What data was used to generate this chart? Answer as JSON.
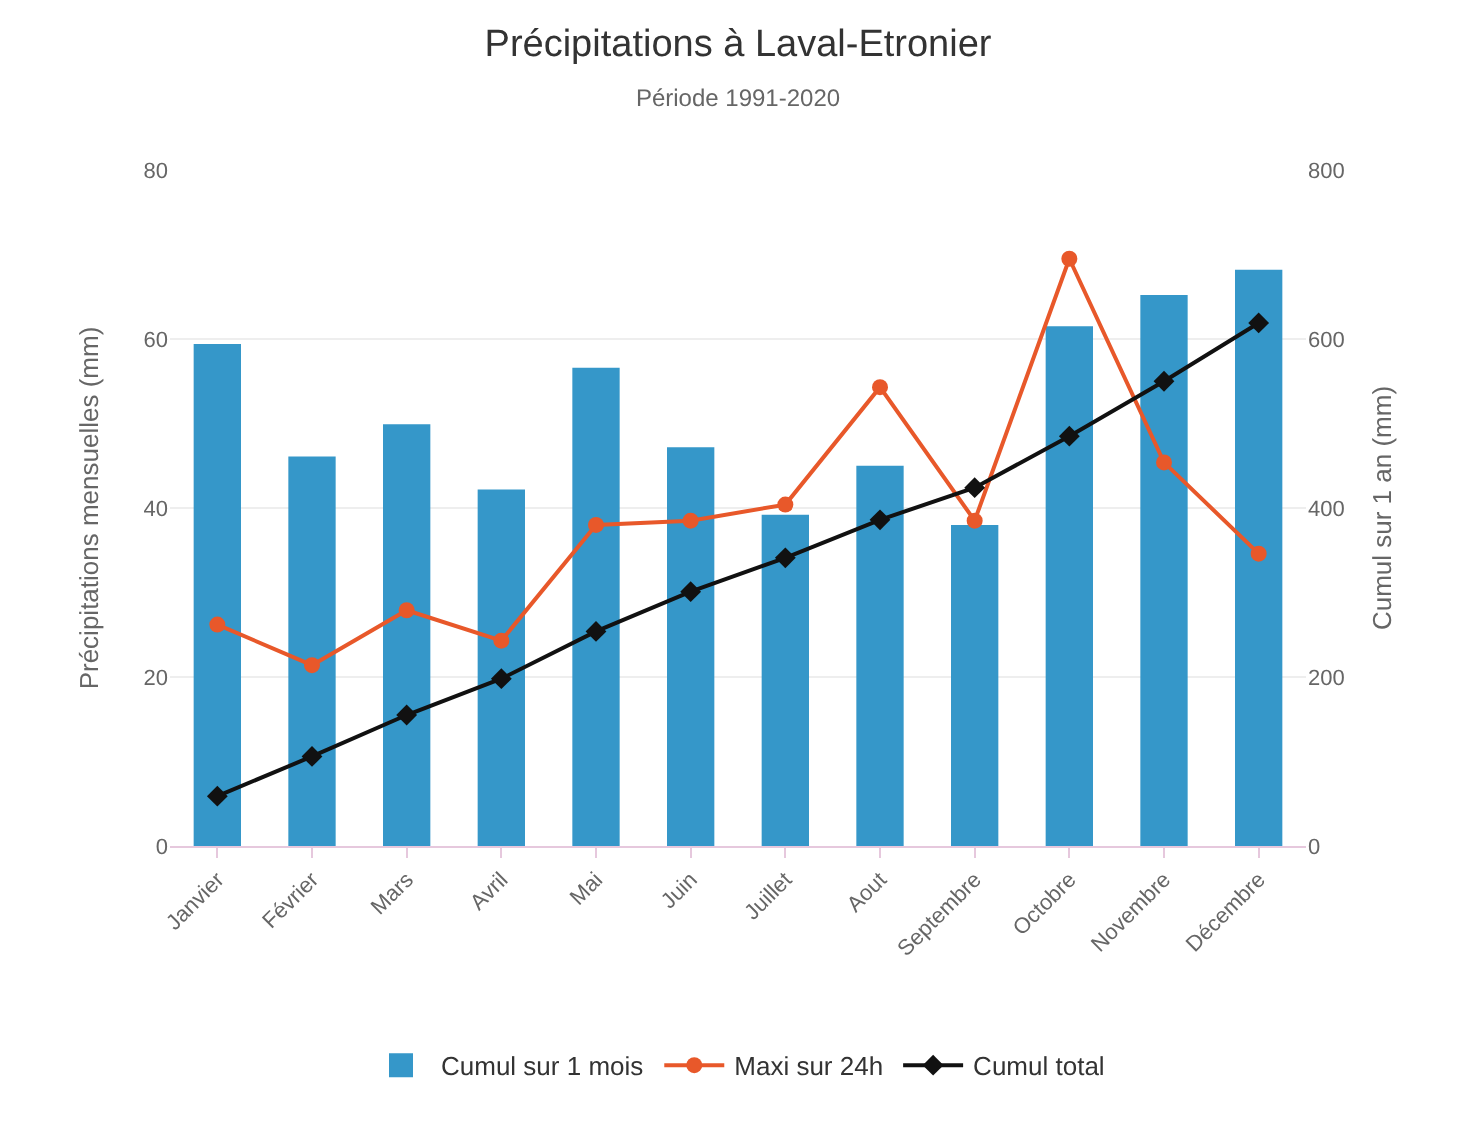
{
  "chart_data": {
    "type": "bar",
    "title": "Précipitations à Laval-Etronier",
    "subtitle": "Période 1991-2020",
    "ylabel": "Précipitations mensuelles (mm)",
    "y2label": "Cumul sur 1 an (mm)",
    "categories": [
      "Janvier",
      "Février",
      "Mars",
      "Avril",
      "Mai",
      "Juin",
      "Juillet",
      "Aout",
      "Septembre",
      "Octobre",
      "Novembre",
      "Décembre"
    ],
    "series": [
      {
        "name": "Cumul sur 1 mois",
        "color": "#3597c9",
        "values": [
          59.4,
          46.1,
          49.9,
          42.2,
          56.6,
          47.2,
          39.2,
          45,
          38,
          61.5,
          65.2,
          68.2
        ]
      },
      {
        "name": "Maxi sur 24h",
        "type": "line",
        "color": "#e8582a",
        "marker": "circle",
        "values": [
          26.2,
          21.4,
          27.9,
          24.3,
          38,
          38.5,
          40.4,
          54.3,
          38.5,
          69.5,
          45.4,
          34.6
        ]
      },
      {
        "name": "Cumul total",
        "type": "line",
        "axis": "y2",
        "color": "#111111",
        "marker": "diamond",
        "values": [
          59,
          106,
          155,
          198,
          254,
          301,
          341,
          386,
          424,
          485,
          550,
          619
        ]
      }
    ],
    "ylim": [
      0,
      80
    ],
    "yticks": [
      0,
      20,
      40,
      60,
      80
    ],
    "y2lim": [
      0,
      800
    ],
    "y2ticks": [
      0,
      200,
      400,
      600,
      800
    ],
    "grid": "y",
    "legend": "bottom"
  }
}
